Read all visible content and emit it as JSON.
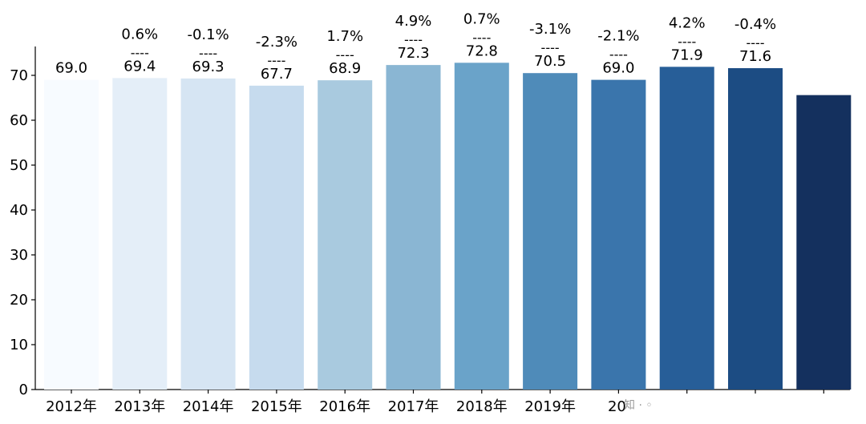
{
  "chart_data": {
    "type": "bar",
    "title": "",
    "xlabel": "",
    "ylabel": "",
    "ylim": [
      0,
      77
    ],
    "yticks": [
      0,
      10,
      20,
      30,
      40,
      50,
      60,
      70
    ],
    "grid": false,
    "categories": [
      "2012年",
      "2013年",
      "2014年",
      "2015年",
      "2016年",
      "2017年",
      "2018年",
      "2019年",
      "20",
      "",
      "",
      ""
    ],
    "values": [
      69.0,
      69.4,
      69.3,
      67.7,
      68.9,
      72.3,
      72.8,
      70.5,
      69.0,
      71.9,
      71.6,
      65.6
    ],
    "value_labels": [
      "69.0",
      "69.4",
      "69.3",
      "67.7",
      "68.9",
      "72.3",
      "72.8",
      "70.5",
      "69.0",
      "71.9",
      "71.6",
      ""
    ],
    "growth_labels": [
      "",
      "0.6%",
      "-0.1%",
      "-2.3%",
      "1.7%",
      "4.9%",
      "0.7%",
      "-3.1%",
      "-2.1%",
      "4.2%",
      "-0.4%",
      ""
    ],
    "separator": "----",
    "colors": [
      "#f7fbff",
      "#e4eef8",
      "#d6e5f3",
      "#c6dbee",
      "#a9cadf",
      "#8ab6d3",
      "#6aa3c9",
      "#4f8bb9",
      "#3a75ac",
      "#275e98",
      "#1c4c83",
      "#14305e"
    ]
  },
  "watermark": "知 · ◦"
}
